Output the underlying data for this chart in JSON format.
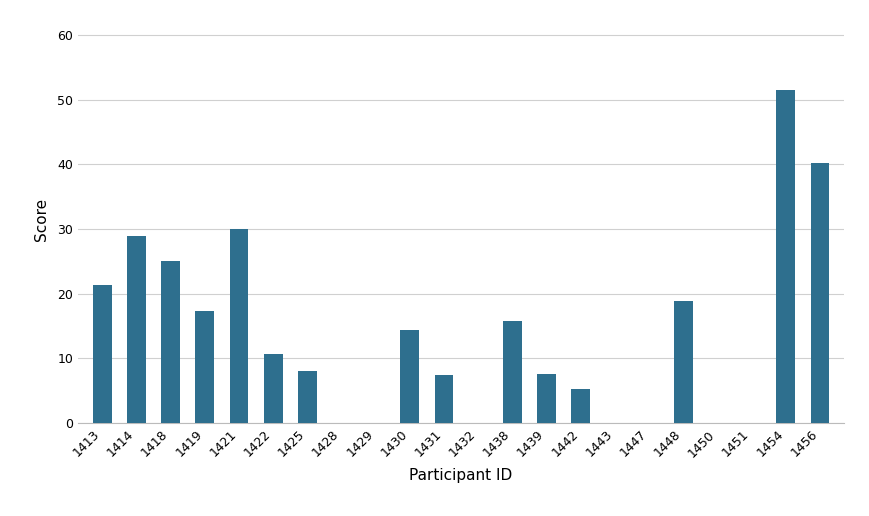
{
  "categories": [
    "1413",
    "1414",
    "1418",
    "1419",
    "1421",
    "1422",
    "1425",
    "1428",
    "1429",
    "1430",
    "1431",
    "1432",
    "1438",
    "1439",
    "1442",
    "1443",
    "1447",
    "1448",
    "1450",
    "1451",
    "1454",
    "1456"
  ],
  "values": [
    21.3,
    28.9,
    25.1,
    17.4,
    30.0,
    10.7,
    8.1,
    0,
    0,
    14.4,
    7.5,
    0,
    15.8,
    7.6,
    5.2,
    0,
    0,
    18.8,
    0,
    0,
    51.5,
    40.2
  ],
  "bar_color": "#2e6f8e",
  "xlabel": "Participant ID",
  "ylabel": "Score",
  "ylim": [
    0,
    63
  ],
  "yticks": [
    0,
    10,
    20,
    30,
    40,
    50,
    60
  ],
  "background_color": "#ffffff",
  "grid_color": "#d0d0d0",
  "tick_label_fontsize": 9,
  "axis_label_fontsize": 11
}
